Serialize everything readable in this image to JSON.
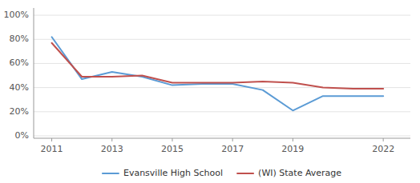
{
  "chart_data": {
    "type": "line",
    "x": [
      2011,
      2012,
      2013,
      2014,
      2015,
      2016,
      2017,
      2018,
      2019,
      2020,
      2021,
      2022
    ],
    "series": [
      {
        "name": "Evansville High School",
        "color": "#5b9bd5",
        "values": [
          0.82,
          0.47,
          0.53,
          0.49,
          0.42,
          0.43,
          0.43,
          0.38,
          0.21,
          0.33,
          0.33,
          0.33
        ]
      },
      {
        "name": "(WI) State Average",
        "color": "#c0504d",
        "values": [
          0.77,
          0.49,
          0.49,
          0.5,
          0.44,
          0.44,
          0.44,
          0.45,
          0.44,
          0.4,
          0.39,
          0.39
        ]
      }
    ],
    "xlim": [
      2010.4,
      2022.9
    ],
    "ylim": [
      -0.02,
      1.06
    ],
    "xticks": [
      2011,
      2013,
      2015,
      2017,
      2019,
      2022
    ],
    "yticks": [
      {
        "value": 0.0,
        "label": "0%"
      },
      {
        "value": 0.2,
        "label": "20%"
      },
      {
        "value": 0.4,
        "label": "40%"
      },
      {
        "value": 0.6,
        "label": "60%"
      },
      {
        "value": 0.8,
        "label": "80%"
      },
      {
        "value": 1.0,
        "label": "100%"
      }
    ],
    "grid": true,
    "legend": "bottom"
  }
}
